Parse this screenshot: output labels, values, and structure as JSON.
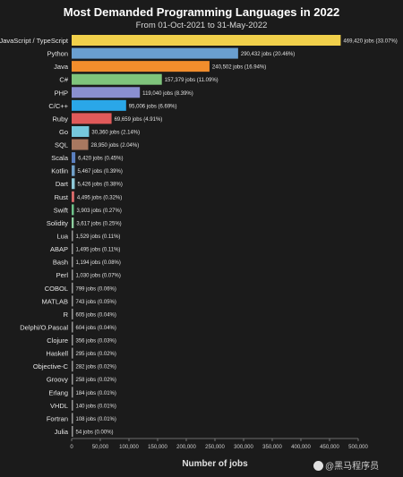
{
  "chart_data": {
    "type": "bar",
    "orientation": "horizontal",
    "title": "Most Demanded Programming Languages in 2022",
    "subtitle": "From 01-Oct-2021 to 31-May-2022",
    "xlabel": "Number of jobs",
    "ylabel": "",
    "xlim": [
      0,
      500000
    ],
    "x_ticks": [
      "0",
      "50,000",
      "100,000",
      "150,000",
      "200,000",
      "250,000",
      "300,000",
      "350,000",
      "400,000",
      "450,000",
      "500,000"
    ],
    "x_tick_values": [
      0,
      50000,
      100000,
      150000,
      200000,
      250000,
      300000,
      350000,
      400000,
      450000,
      500000
    ],
    "grid": false,
    "legend": "none",
    "categories": [
      "JavaScript / TypeScript",
      "Python",
      "Java",
      "C#",
      "PHP",
      "C/C++",
      "Ruby",
      "Go",
      "SQL",
      "Scala",
      "Kotlin",
      "Dart",
      "Rust",
      "Swift",
      "Solidity",
      "Lua",
      "ABAP",
      "Bash",
      "Perl",
      "COBOL",
      "MATLAB",
      "R",
      "Delphi/O.Pascal",
      "Clojure",
      "Haskell",
      "Objective-C",
      "Groovy",
      "Erlang",
      "VHDL",
      "Fortran",
      "Julia"
    ],
    "values": [
      469420,
      290432,
      240502,
      157379,
      119040,
      95006,
      69659,
      30360,
      28950,
      6420,
      5467,
      5426,
      4495,
      3903,
      3617,
      1529,
      1495,
      1194,
      1030,
      799,
      743,
      605,
      604,
      356,
      295,
      282,
      258,
      184,
      140,
      108,
      54
    ],
    "data_labels": [
      "469,420 jobs (33.07%)",
      "290,432 jobs (20.46%)",
      "240,502 jobs (16.94%)",
      "157,379 jobs (11.09%)",
      "119,040 jobs (8.39%)",
      "95,006 jobs (6.69%)",
      "69,659 jobs (4.91%)",
      "30,360 jobs (2.14%)",
      "28,950 jobs (2.04%)",
      "6,420 jobs (0.45%)",
      "5,467 jobs (0.39%)",
      "5,426 jobs (0.38%)",
      "4,495 jobs (0.32%)",
      "3,903 jobs (0.27%)",
      "3,617 jobs (0.25%)",
      "1,529 jobs (0.11%)",
      "1,495 jobs (0.11%)",
      "1,194 jobs (0.08%)",
      "1,030 jobs (0.07%)",
      "799 jobs (0.06%)",
      "743 jobs (0.05%)",
      "605 jobs (0.04%)",
      "604 jobs (0.04%)",
      "356 jobs (0.03%)",
      "295 jobs (0.02%)",
      "282 jobs (0.02%)",
      "258 jobs (0.02%)",
      "184 jobs (0.01%)",
      "140 jobs (0.01%)",
      "108 jobs (0.01%)",
      "54 jobs (0.00%)"
    ],
    "colors": [
      "#f1d04b",
      "#6a9fd0",
      "#f28d2c",
      "#7fc47c",
      "#8a8fd0",
      "#2aa7e8",
      "#e05a5a",
      "#76c8dc",
      "#a87860",
      "#5b7fbf",
      "#6f9fc8",
      "#8fc9d8",
      "#d86a6a",
      "#6ec28a",
      "#8fd0a0",
      "#9a9a9a",
      "#9a9a9a",
      "#9a9a9a",
      "#9a9a9a",
      "#9a9a9a",
      "#9a9a9a",
      "#9a9a9a",
      "#9a9a9a",
      "#9a9a9a",
      "#9a9a9a",
      "#9a9a9a",
      "#9a9a9a",
      "#9a9a9a",
      "#9a9a9a",
      "#9a9a9a",
      "#9a9a9a"
    ]
  },
  "watermark": {
    "text": "@黑马程序员"
  }
}
